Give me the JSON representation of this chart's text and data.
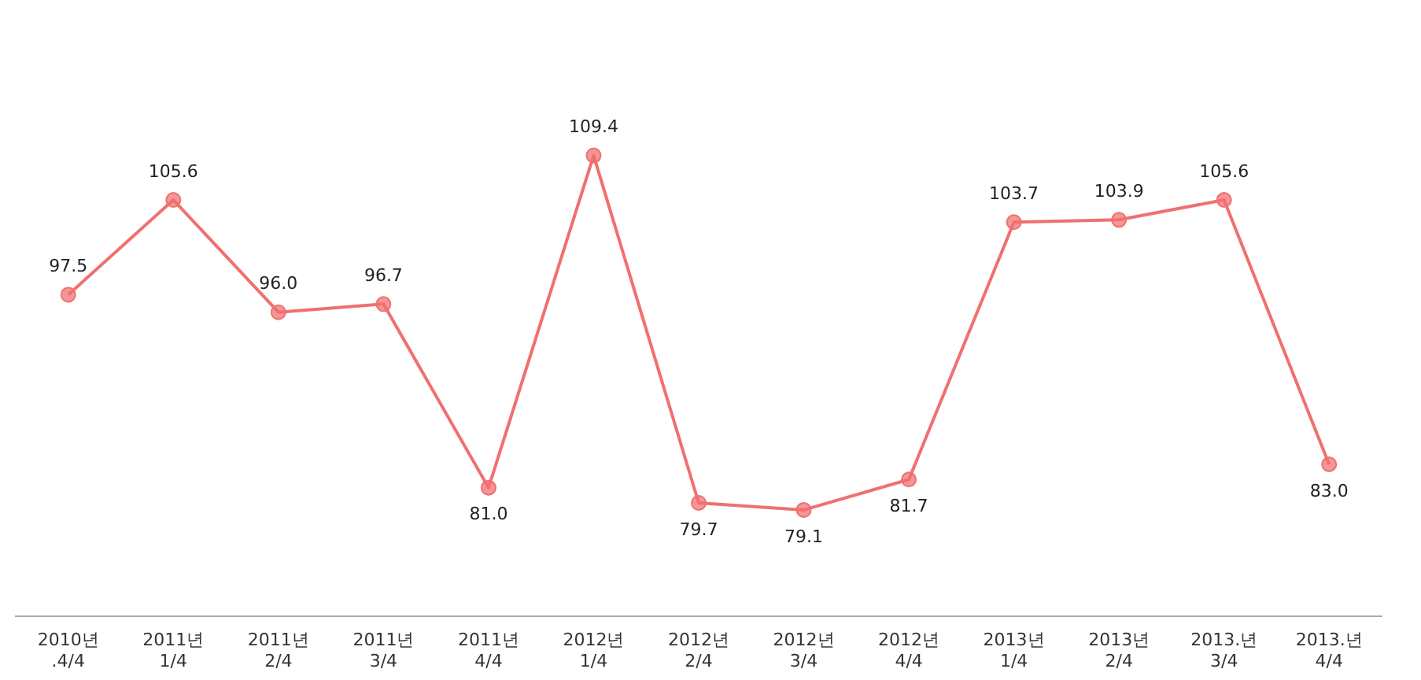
{
  "chart_data": {
    "type": "line",
    "categories": [
      "2010년 .4/4",
      "2011년 1/4",
      "2011년 2/4",
      "2011년 3/4",
      "2011년 4/4",
      "2012년 1/4",
      "2012년 2/4",
      "2012년 3/4",
      "2012년 4/4",
      "2013년 1/4",
      "2013년 2/4",
      "2013.년 3/4",
      "2013.년 4/4"
    ],
    "series": [
      {
        "color": "#f07070",
        "values": [
          97.5,
          105.6,
          96.0,
          96.7,
          81.0,
          109.4,
          79.7,
          79.1,
          81.7,
          103.7,
          103.9,
          105.6,
          83.0
        ],
        "value_labels": [
          "97.5",
          "105.6",
          "96.0",
          "96.7",
          "81.0",
          "109.4",
          "79.7",
          "79.1",
          "81.7",
          "103.7",
          "103.9",
          "105.6",
          "83.0"
        ]
      }
    ],
    "tick_labels": "x",
    "marker": "circle",
    "line_style": "solid",
    "grid": false,
    "legend": false
  }
}
